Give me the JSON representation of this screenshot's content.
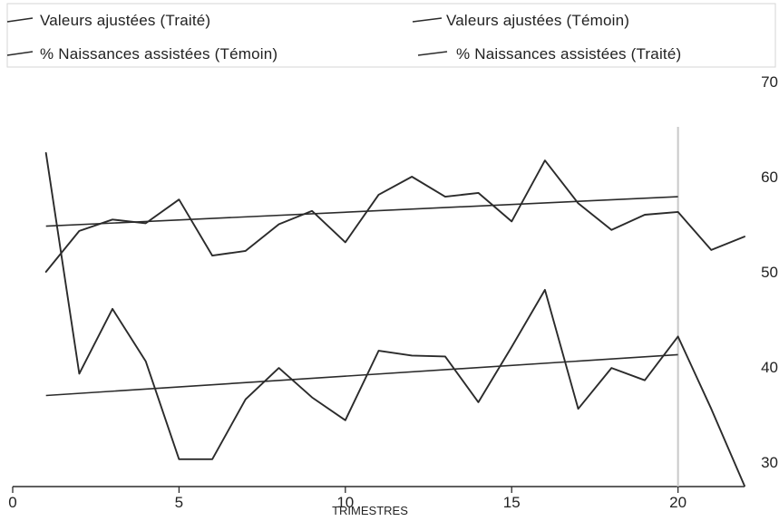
{
  "chart_data": {
    "type": "line",
    "xlabel": "TRIMESTRES",
    "ylabel": "",
    "xlim": [
      0,
      22
    ],
    "ylim": [
      28,
      70
    ],
    "xticks": [
      0,
      5,
      10,
      15,
      20
    ],
    "yticks": [
      30,
      40,
      50,
      60,
      70
    ],
    "y_axis_position": "right",
    "grid": false,
    "legend_position": "top",
    "reference_line_x": 20,
    "series": [
      {
        "name": "Valeurs ajustées (Traité)",
        "style": "fit",
        "x": [
          1,
          20
        ],
        "values": [
          54.8,
          57.9
        ]
      },
      {
        "name": "Valeurs ajustées (Témoin)",
        "style": "fit",
        "x": [
          1,
          20
        ],
        "values": [
          37.0,
          41.3
        ]
      },
      {
        "name": "% Naissances assistées (Témoin)",
        "style": "line",
        "x": [
          1,
          2,
          3,
          4,
          5,
          6,
          7,
          8,
          9,
          10,
          11,
          12,
          13,
          14,
          15,
          16,
          17,
          18,
          19,
          20,
          21,
          22
        ],
        "values": [
          62.5,
          39.3,
          46.1,
          40.6,
          30.3,
          30.3,
          36.6,
          39.9,
          36.8,
          34.4,
          41.7,
          41.2,
          41.1,
          36.3,
          42.1,
          48.1,
          35.6,
          39.9,
          38.6,
          43.2,
          35.6,
          27.5
        ]
      },
      {
        "name": "% Naissances assistées (Traité)",
        "style": "line",
        "x": [
          1,
          2,
          3,
          4,
          5,
          6,
          7,
          8,
          9,
          10,
          11,
          12,
          13,
          14,
          15,
          16,
          17,
          18,
          19,
          20,
          21,
          22
        ],
        "values": [
          50.0,
          54.3,
          55.5,
          55.1,
          57.6,
          51.7,
          52.2,
          55.0,
          56.4,
          53.1,
          58.1,
          60.0,
          57.9,
          58.3,
          55.3,
          61.7,
          57.2,
          54.4,
          56.0,
          56.3,
          52.3,
          53.7
        ]
      }
    ]
  }
}
